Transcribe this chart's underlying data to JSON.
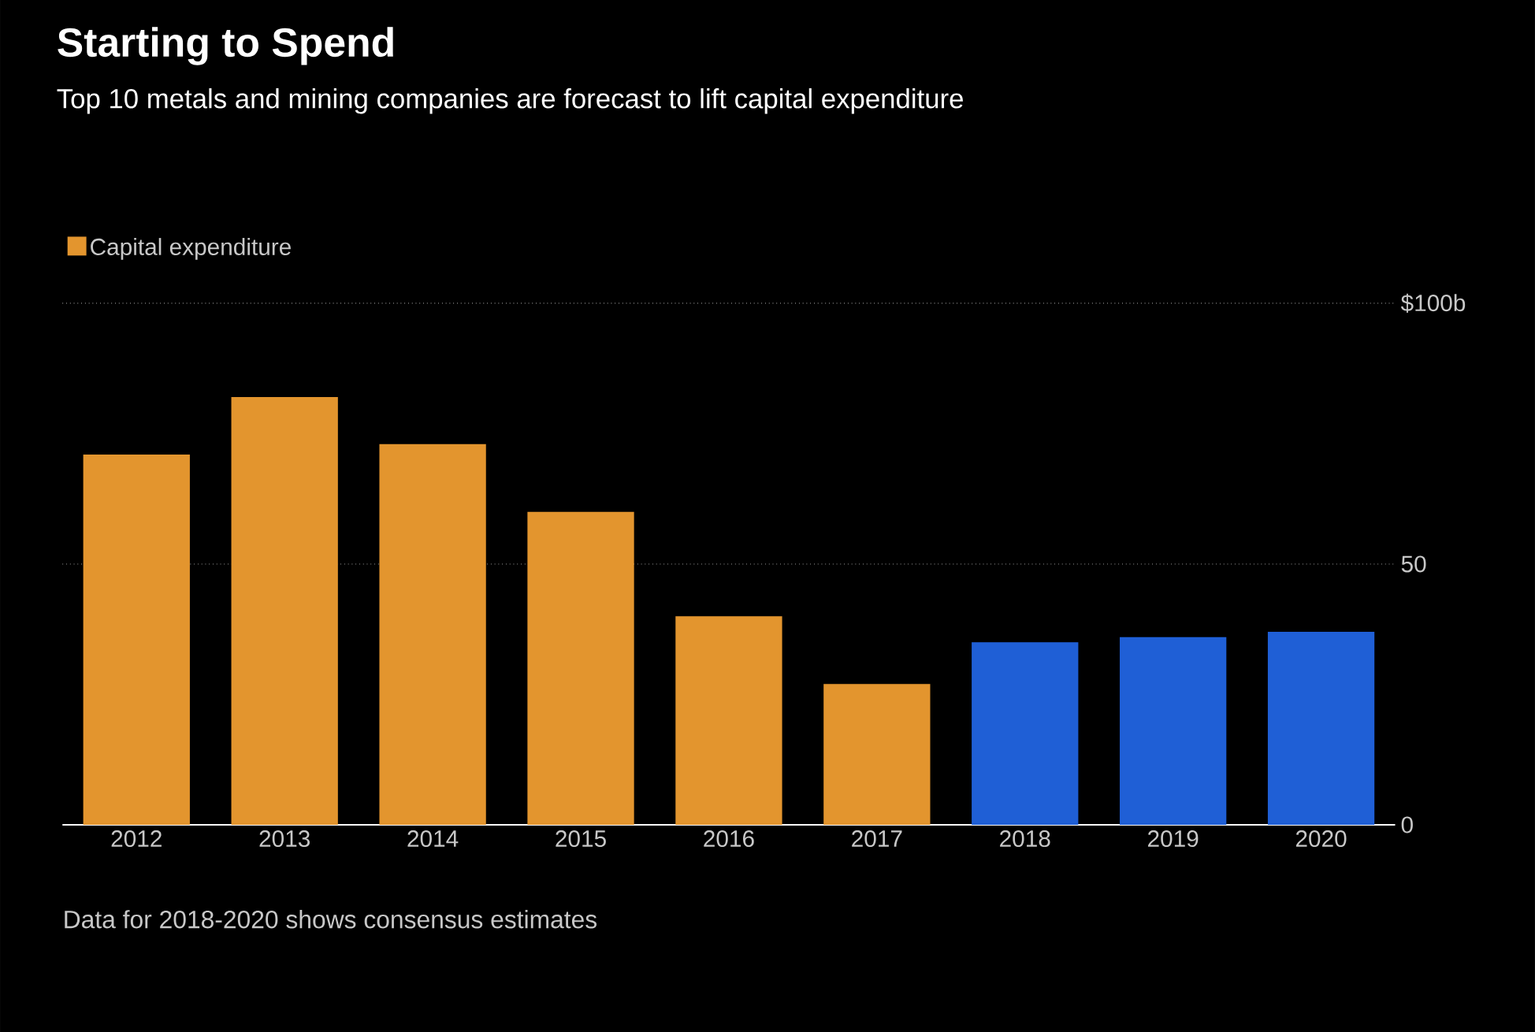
{
  "chart_data": {
    "type": "bar",
    "title": "Starting to Spend",
    "subtitle": "Top 10 metals and mining companies are forecast to lift capital expenditure",
    "categories": [
      "2012",
      "2013",
      "2014",
      "2015",
      "2016",
      "2017",
      "2018",
      "2019",
      "2020"
    ],
    "series": [
      {
        "name": "Capital expenditure",
        "color": "#e3952e",
        "colors": [
          "#e3952e",
          "#e3952e",
          "#e3952e",
          "#e3952e",
          "#e3952e",
          "#e3952e",
          "#1f5fd6",
          "#1f5fd6",
          "#1f5fd6"
        ],
        "values": [
          71,
          82,
          73,
          60,
          40,
          27,
          35,
          36,
          37
        ]
      }
    ],
    "ylim": [
      0,
      100
    ],
    "yticks": [
      {
        "value": 100,
        "label": "$100b"
      },
      50,
      0
    ],
    "grid": "y",
    "legend": "top left",
    "annotations": [
      "Data for 2018-2020 shows consensus estimates"
    ]
  }
}
